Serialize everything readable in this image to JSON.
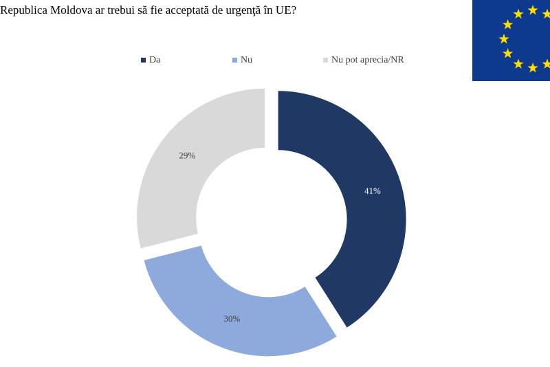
{
  "chart_data": {
    "type": "donut",
    "title": "Republica Moldova ar trebui să fie acceptată de urgenţă în UE?",
    "categories": [
      "Da",
      "Nu",
      "Nu pot aprecia/NR"
    ],
    "values": [
      41,
      30,
      29
    ],
    "value_labels": [
      "41%",
      "30%",
      "29%"
    ],
    "colors": [
      "#1f3864",
      "#8eaadc",
      "#d9d9d9"
    ],
    "legend": "top"
  }
}
